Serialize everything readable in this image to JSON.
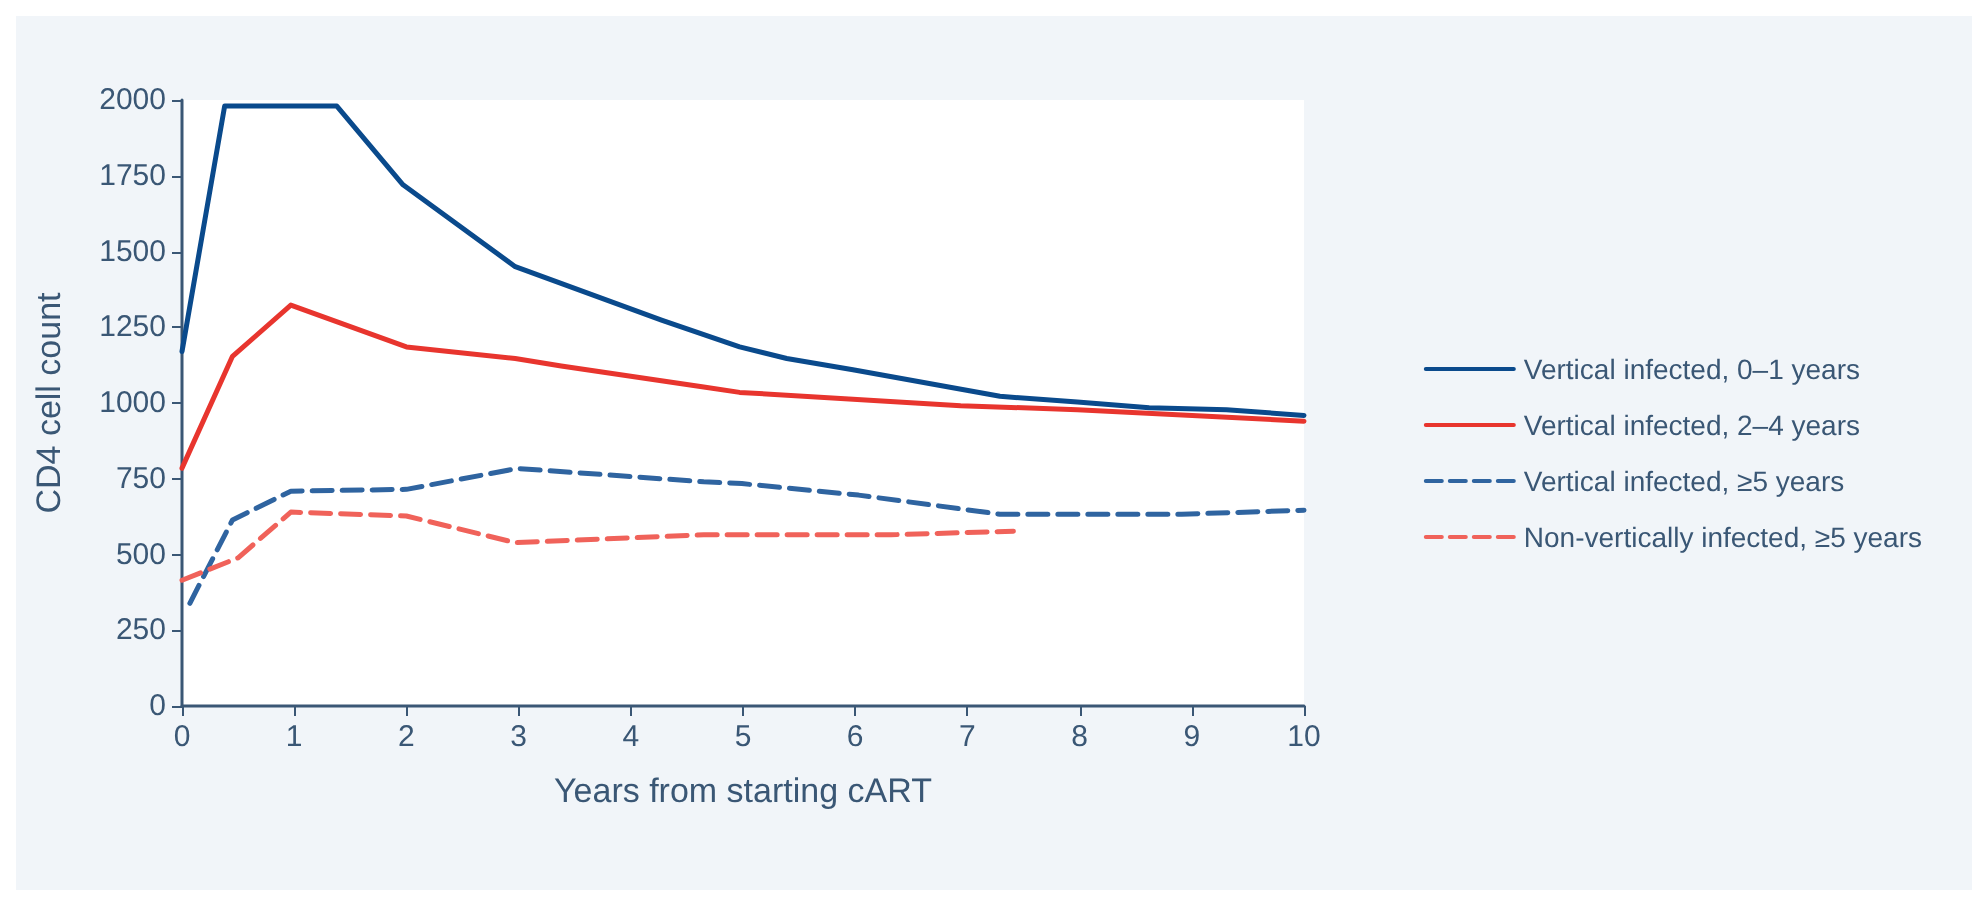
{
  "chart_data": {
    "type": "line",
    "xlabel": "Years from starting cART",
    "ylabel": "CD4 cell count",
    "xlim": [
      0,
      10
    ],
    "xticks": [
      0,
      1,
      2,
      3,
      4,
      5,
      6,
      7,
      8,
      9,
      10
    ],
    "ylim": [
      0,
      2000
    ],
    "yticks": [
      0,
      250,
      500,
      750,
      1000,
      1250,
      1500,
      1750,
      2000
    ],
    "grid": false,
    "legend": "right",
    "marker": "none",
    "series": [
      {
        "name": "Vertical infected, 0–1 years",
        "color": "#0a4a8c",
        "line_style": "solid",
        "x": [
          0,
          0.38,
          1.38,
          1.97,
          2.97,
          4.28,
          4.97,
          5.39,
          5.98,
          7.29,
          7.98,
          8.62,
          9.31,
          10
        ],
        "values": [
          1170,
          1980,
          1980,
          1720,
          1450,
          1273,
          1185,
          1147,
          1110,
          1022,
          1003,
          984,
          978,
          959
        ]
      },
      {
        "name": "Vertical infected, 2–4 years",
        "color": "#e8352e",
        "line_style": "solid",
        "x": [
          0,
          0.45,
          0.97,
          2.0,
          2.97,
          3.38,
          4.65,
          4.97,
          6.94,
          7.98,
          10
        ],
        "values": [
          785,
          1154,
          1323,
          1185,
          1147,
          1122,
          1053,
          1035,
          991,
          978,
          940
        ]
      },
      {
        "name": "Vertical infected, ≥5 years",
        "color": "#2f64a0",
        "line_style": "dashed",
        "x": [
          0.07,
          0.45,
          0.97,
          2.0,
          2.99,
          4.65,
          4.99,
          6.03,
          7.29,
          8.91,
          10
        ],
        "values": [
          339,
          614,
          709,
          715,
          784,
          740,
          734,
          696,
          633,
          633,
          646
        ]
      },
      {
        "name": "Non-vertically infected, ≥5 years",
        "color": "#f0625a",
        "line_style": "dashed",
        "x": [
          0,
          0.5,
          0.97,
          2.0,
          2.97,
          4.65,
          6.32,
          7.41
        ],
        "values": [
          415,
          489,
          640,
          627,
          539,
          565,
          565,
          577
        ]
      }
    ]
  }
}
